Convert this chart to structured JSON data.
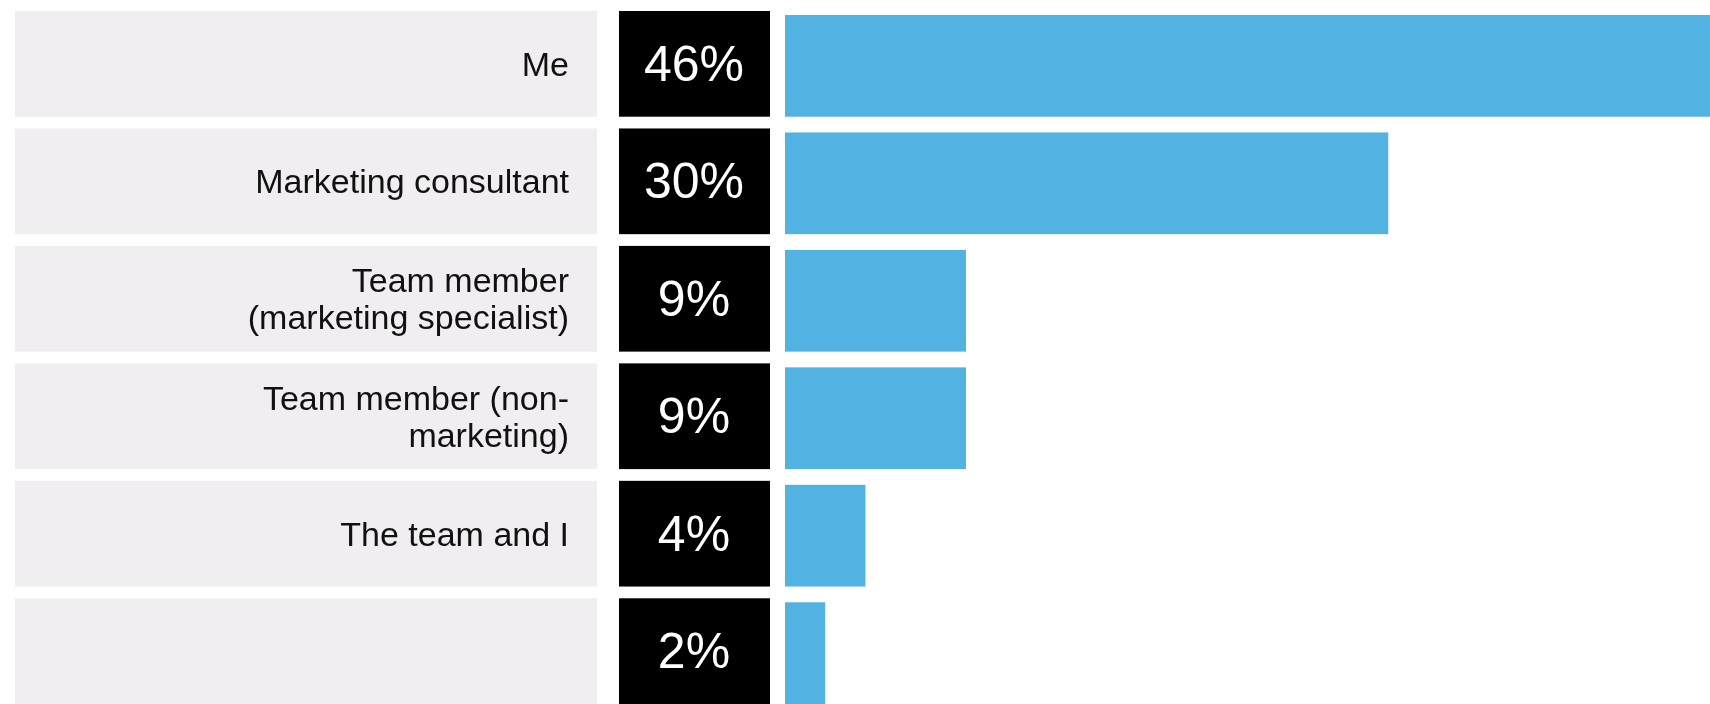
{
  "chart_data": {
    "type": "bar",
    "orientation": "horizontal",
    "categories": [
      "Me",
      "Marketing consultant",
      "Team member (marketing specialist)",
      "Team member (non-marketing)",
      "The team and I",
      null
    ],
    "values": [
      46,
      30,
      9,
      9,
      4,
      2
    ],
    "value_labels": [
      "46%",
      "30%",
      "9%",
      "9%",
      "4%",
      "2%"
    ],
    "color": "#52b2e2"
  }
}
